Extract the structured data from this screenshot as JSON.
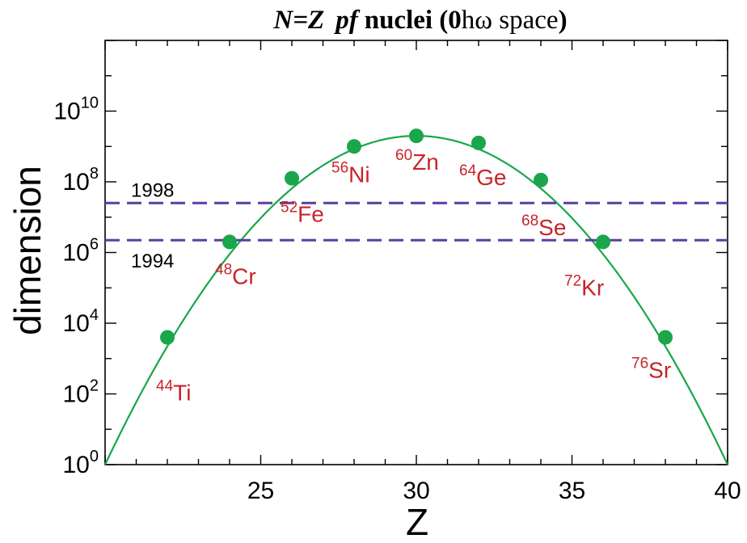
{
  "chart_data": {
    "type": "scatter",
    "title": {
      "prefix": "N=Z",
      "italic_part": "pf",
      "bold_part": "nuclei (0",
      "hbar_omega": "hω",
      "suffix": " space",
      "close_paren": ")"
    },
    "xlabel": "Z",
    "ylabel": "dimension",
    "xlim": [
      20,
      40
    ],
    "ylim_log10": [
      0,
      12
    ],
    "y_scale": "log",
    "x_ticks": [
      25,
      30,
      35,
      40
    ],
    "y_tick_exponents": [
      0,
      2,
      4,
      6,
      8,
      10
    ],
    "y_tick_base": "10",
    "grid": false,
    "colors": {
      "points": "#1aa64a",
      "curve": "#1aa64a",
      "labels": "#c8242b",
      "hlines": "#5a3fa0",
      "axes": "#000000"
    },
    "points": [
      {
        "Z": 22,
        "log10_dim": 3.6,
        "mass": "44",
        "element": "Ti"
      },
      {
        "Z": 24,
        "log10_dim": 6.3,
        "mass": "48",
        "element": "Cr"
      },
      {
        "Z": 26,
        "log10_dim": 8.1,
        "mass": "52",
        "element": "Fe"
      },
      {
        "Z": 28,
        "log10_dim": 9.0,
        "mass": "56",
        "element": "Ni"
      },
      {
        "Z": 30,
        "log10_dim": 9.3,
        "mass": "60",
        "element": "Zn"
      },
      {
        "Z": 32,
        "log10_dim": 9.1,
        "mass": "64",
        "element": "Ge"
      },
      {
        "Z": 34,
        "log10_dim": 8.05,
        "mass": "68",
        "element": "Se"
      },
      {
        "Z": 36,
        "log10_dim": 6.3,
        "mass": "72",
        "element": "Kr"
      },
      {
        "Z": 38,
        "log10_dim": 3.6,
        "mass": "76",
        "element": "Sr"
      }
    ],
    "fit_curve": {
      "Z_min": 20,
      "Z_max": 40,
      "peak_Z": 30,
      "peak_log10": 9.3
    },
    "hlines": [
      {
        "log10_dim": 7.4,
        "label": "1998"
      },
      {
        "log10_dim": 6.35,
        "label": "1994"
      }
    ]
  }
}
